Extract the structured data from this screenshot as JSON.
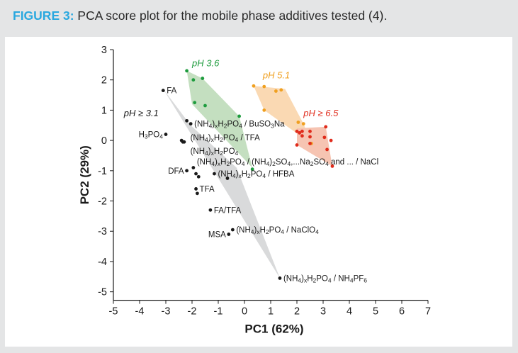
{
  "figure": {
    "label": "FIGURE 3:",
    "caption": "PCA score plot for the mobile phase additives tested (4)."
  },
  "chart_data": {
    "type": "scatter",
    "title": "PCA score plot for the mobile phase additives tested (4).",
    "xlabel": "PC1 (62%)",
    "ylabel": "PC2 (29%)",
    "xlim": [
      -5,
      7
    ],
    "ylim": [
      -5.5,
      3
    ],
    "xticks": [
      -5,
      -4,
      -3,
      -2,
      -1,
      0,
      1,
      2,
      3,
      4,
      5,
      6,
      7
    ],
    "yticks": [
      3,
      2,
      1,
      0,
      -1,
      -2,
      -3,
      -4,
      -5
    ],
    "groups": [
      {
        "name": "pH ≥ 3.1",
        "color": "#1a1a1a",
        "hull_color": "#d9dadb",
        "hull": [
          [
            -3.1,
            1.7
          ],
          [
            1.35,
            -4.55
          ],
          [
            -0.3,
            -0.9
          ],
          [
            -2.05,
            0.5
          ]
        ],
        "points": [
          [
            -3.1,
            1.65
          ],
          [
            -3.0,
            0.2
          ],
          [
            -2.4,
            0.0
          ],
          [
            -2.35,
            -0.05
          ],
          [
            -2.3,
            -0.05
          ],
          [
            -2.2,
            0.65
          ],
          [
            -2.05,
            0.55
          ],
          [
            -1.95,
            -0.9
          ],
          [
            -1.85,
            -1.1
          ],
          [
            -2.2,
            -1.0
          ],
          [
            -1.75,
            -1.2
          ],
          [
            -1.85,
            -1.6
          ],
          [
            -1.8,
            -1.75
          ],
          [
            -1.3,
            -2.3
          ],
          [
            -0.6,
            -3.1
          ],
          [
            -0.45,
            -2.95
          ],
          [
            1.35,
            -4.55
          ],
          [
            -0.65,
            -1.25
          ],
          [
            -1.15,
            -1.1
          ]
        ]
      },
      {
        "name": "pH 3.6",
        "color": "#1e9c3e",
        "hull_color": "#c4dfc0",
        "hull": [
          [
            -2.2,
            2.3
          ],
          [
            -1.6,
            2.05
          ],
          [
            -0.2,
            0.8
          ],
          [
            0.3,
            -0.9
          ],
          [
            -2.0,
            1.2
          ]
        ],
        "points": [
          [
            -2.2,
            2.3
          ],
          [
            -1.95,
            2.0
          ],
          [
            -1.6,
            2.05
          ],
          [
            -1.9,
            1.25
          ],
          [
            -1.5,
            1.15
          ],
          [
            -0.2,
            0.8
          ],
          [
            0.3,
            -0.95
          ]
        ]
      },
      {
        "name": "pH 5.1",
        "color": "#f0a020",
        "hull_color": "#fad9b3",
        "hull": [
          [
            0.35,
            1.8
          ],
          [
            1.55,
            1.7
          ],
          [
            2.25,
            0.55
          ],
          [
            2.55,
            -0.1
          ],
          [
            0.75,
            1.0
          ]
        ],
        "points": [
          [
            0.35,
            1.8
          ],
          [
            0.75,
            1.78
          ],
          [
            1.2,
            1.63
          ],
          [
            1.4,
            1.67
          ],
          [
            0.75,
            1.0
          ],
          [
            2.05,
            0.6
          ],
          [
            2.25,
            0.55
          ],
          [
            2.55,
            -0.1
          ]
        ]
      },
      {
        "name": "pH ≥ 6.5",
        "color": "#e02c1c",
        "hull_color": "#f6c4b2",
        "hull": [
          [
            2.0,
            0.4
          ],
          [
            3.1,
            0.45
          ],
          [
            3.35,
            -0.85
          ],
          [
            2.0,
            -0.15
          ]
        ],
        "points": [
          [
            2.0,
            0.3
          ],
          [
            2.1,
            0.25
          ],
          [
            2.2,
            0.3
          ],
          [
            2.5,
            0.3
          ],
          [
            2.5,
            0.12
          ],
          [
            2.2,
            0.15
          ],
          [
            2.0,
            -0.15
          ],
          [
            2.5,
            -0.1
          ],
          [
            3.1,
            0.45
          ],
          [
            3.05,
            0.1
          ],
          [
            3.3,
            0.0
          ],
          [
            3.15,
            -0.3
          ],
          [
            3.35,
            -0.85
          ]
        ]
      }
    ],
    "point_labels": [
      {
        "text": "FA",
        "x": -3.1,
        "y": 1.65
      },
      {
        "text": "H₃PO₄",
        "x": -3.0,
        "y": 0.2
      },
      {
        "text": "(NH₄)ₓH₂PO₄ / BuSO₃Na",
        "x": -2.05,
        "y": 0.55
      },
      {
        "text": "(NH₄)ₓH₂PO₄ / TFA",
        "x": -2.2,
        "y": 0.1
      },
      {
        "text": "(NH₄)ₓH₂PO₄",
        "x": -2.2,
        "y": -0.35
      },
      {
        "text": "(NH₄)ₓH₂PO₄ / (NH₄)₂SO₄,...Na₂SO₄ and ... / NaCl",
        "x": -1.95,
        "y": -0.7
      },
      {
        "text": "DFA",
        "x": -2.2,
        "y": -1.0
      },
      {
        "text": "(NH₄)ₓH₂PO₄ / HFBA",
        "x": -1.15,
        "y": -1.1
      },
      {
        "text": "TFA",
        "x": -1.85,
        "y": -1.6
      },
      {
        "text": "FA/TFA",
        "x": -1.3,
        "y": -2.3
      },
      {
        "text": "MSA",
        "x": -0.6,
        "y": -3.1
      },
      {
        "text": "(NH₄)ₓH₂PO₄ / NaClO₄",
        "x": -0.45,
        "y": -2.95
      },
      {
        "text": "(NH₄)ₓH₂PO₄ / NH₄PF₆",
        "x": 1.35,
        "y": -4.55
      }
    ],
    "group_labels": [
      {
        "text": "pH ≥ 3.1",
        "x": -4.6,
        "y": 0.8,
        "color": "#1a1a1a"
      },
      {
        "text": "pH 3.6",
        "x": -2.0,
        "y": 2.45,
        "color": "#1e9c3e"
      },
      {
        "text": "pH 5.1",
        "x": 0.7,
        "y": 2.05,
        "color": "#f0a020"
      },
      {
        "text": "pH ≥ 6.5",
        "x": 2.25,
        "y": 0.8,
        "color": "#e02c1c"
      }
    ]
  }
}
